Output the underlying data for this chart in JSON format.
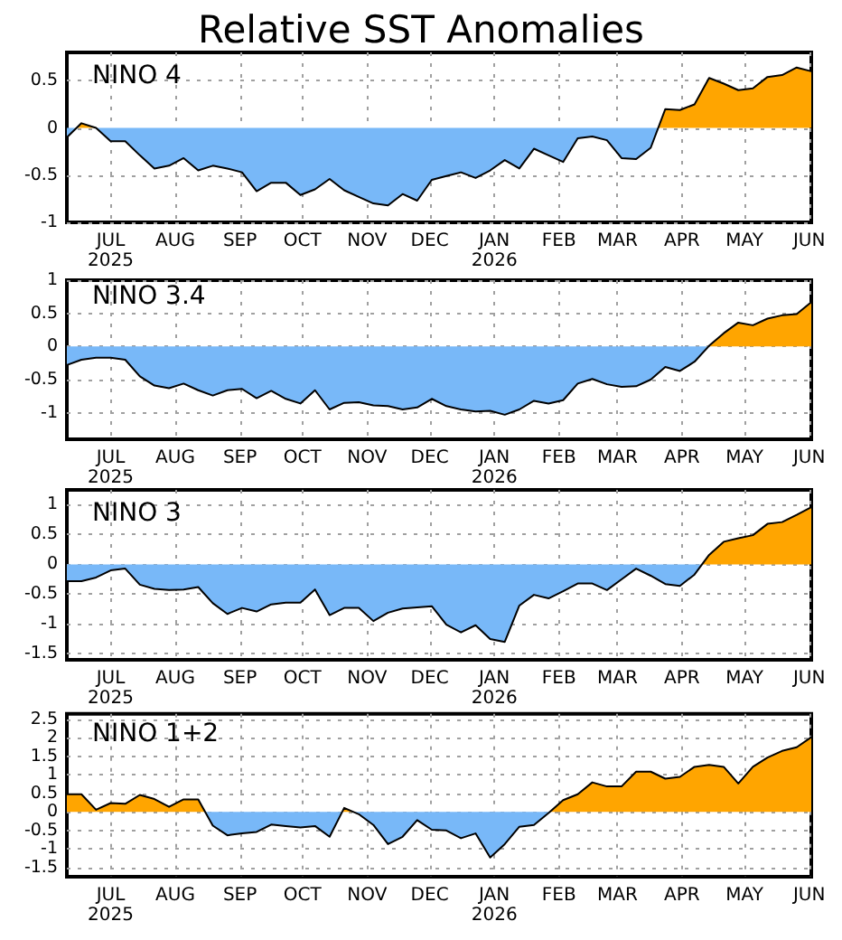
{
  "chart_data": [
    {
      "type": "area",
      "title": "Relative SST Anomalies",
      "subtitle": "NINO 4",
      "grid": true,
      "marker": "none",
      "x": [
        "2025-06-10",
        "2025-06-17",
        "2025-06-24",
        "2025-07-01",
        "2025-07-08",
        "2025-07-15",
        "2025-07-22",
        "2025-07-29",
        "2025-08-05",
        "2025-08-12",
        "2025-08-19",
        "2025-08-26",
        "2025-09-02",
        "2025-09-09",
        "2025-09-16",
        "2025-09-23",
        "2025-09-30",
        "2025-10-07",
        "2025-10-14",
        "2025-10-21",
        "2025-10-28",
        "2025-11-04",
        "2025-11-11",
        "2025-11-18",
        "2025-11-25",
        "2025-12-02",
        "2025-12-09",
        "2025-12-16",
        "2025-12-23",
        "2025-12-30",
        "2026-01-06",
        "2026-01-13",
        "2026-01-20",
        "2026-01-27",
        "2026-02-03",
        "2026-02-10",
        "2026-02-17",
        "2026-02-24",
        "2026-03-03",
        "2026-03-10",
        "2026-03-17",
        "2026-03-24",
        "2026-03-31",
        "2026-04-07",
        "2026-04-14",
        "2026-04-21",
        "2026-04-28",
        "2026-05-05",
        "2026-05-12",
        "2026-05-19",
        "2026-05-26",
        "2026-06-02"
      ],
      "xlim": [
        "2025-06-10",
        "2026-06-02"
      ],
      "xticks": [
        {
          "value": "2025-07-01",
          "label": "JUL\n2025"
        },
        {
          "value": "2025-08-01",
          "label": "AUG"
        },
        {
          "value": "2025-09-01",
          "label": "SEP"
        },
        {
          "value": "2025-10-01",
          "label": "OCT"
        },
        {
          "value": "2025-11-01",
          "label": "NOV"
        },
        {
          "value": "2025-12-01",
          "label": "DEC"
        },
        {
          "value": "2026-01-01",
          "label": "JAN\n2026"
        },
        {
          "value": "2026-02-01",
          "label": "FEB"
        },
        {
          "value": "2026-03-01",
          "label": "MAR"
        },
        {
          "value": "2026-04-01",
          "label": "APR"
        },
        {
          "value": "2026-05-01",
          "label": "MAY"
        },
        {
          "value": "2026-06-01",
          "label": "JUN"
        }
      ],
      "ylim": [
        -1,
        0.8
      ],
      "yticks": [
        -1,
        -0.5,
        0,
        0.5
      ],
      "series": [
        {
          "color": "#000000",
          "values": [
            -0.1,
            0.05,
            0,
            -0.14,
            -0.14,
            -0.29,
            -0.43,
            -0.4,
            -0.32,
            -0.45,
            -0.4,
            -0.43,
            -0.47,
            -0.67,
            -0.58,
            -0.58,
            -0.71,
            -0.65,
            -0.54,
            -0.66,
            -0.73,
            -0.8,
            -0.82,
            -0.7,
            -0.77,
            -0.55,
            -0.51,
            -0.47,
            -0.53,
            -0.45,
            -0.34,
            -0.43,
            -0.22,
            -0.29,
            -0.36,
            -0.11,
            -0.09,
            -0.13,
            -0.32,
            -0.33,
            -0.21,
            0.2,
            0.19,
            0.25,
            0.53,
            0.47,
            0.4,
            0.42,
            0.54,
            0.56,
            0.64,
            0.6
          ],
          "colors": [
            "#78b8f8",
            "#ffa500",
            "#ffa500",
            "#78b8f8",
            "#78b8f8",
            "#78b8f8",
            "#78b8f8",
            "#78b8f8",
            "#78b8f8",
            "#78b8f8",
            "#78b8f8",
            "#78b8f8",
            "#78b8f8",
            "#78b8f8",
            "#78b8f8",
            "#78b8f8",
            "#78b8f8",
            "#78b8f8",
            "#78b8f8",
            "#78b8f8",
            "#78b8f8",
            "#78b8f8",
            "#78b8f8",
            "#78b8f8",
            "#78b8f8",
            "#78b8f8",
            "#78b8f8",
            "#78b8f8",
            "#78b8f8",
            "#78b8f8",
            "#78b8f8",
            "#78b8f8",
            "#78b8f8",
            "#78b8f8",
            "#78b8f8",
            "#78b8f8",
            "#78b8f8",
            "#78b8f8",
            "#78b8f8",
            "#78b8f8",
            "#78b8f8",
            "#ffa500",
            "#ffa500",
            "#ffa500",
            "#ffa500",
            "#ffa500",
            "#ffa500",
            "#ffa500",
            "#ffa500",
            "#ffa500",
            "#ffa500",
            "#ffa500"
          ]
        }
      ]
    },
    {
      "type": "area",
      "subtitle": "NINO 3.4",
      "grid": true,
      "marker": "none",
      "x": [
        "2025-06-10",
        "2025-06-17",
        "2025-06-24",
        "2025-07-01",
        "2025-07-08",
        "2025-07-15",
        "2025-07-22",
        "2025-07-29",
        "2025-08-05",
        "2025-08-12",
        "2025-08-19",
        "2025-08-26",
        "2025-09-02",
        "2025-09-09",
        "2025-09-16",
        "2025-09-23",
        "2025-09-30",
        "2025-10-07",
        "2025-10-14",
        "2025-10-21",
        "2025-10-28",
        "2025-11-04",
        "2025-11-11",
        "2025-11-18",
        "2025-11-25",
        "2025-12-02",
        "2025-12-09",
        "2025-12-16",
        "2025-12-23",
        "2025-12-30",
        "2026-01-06",
        "2026-01-13",
        "2026-01-20",
        "2026-01-27",
        "2026-02-03",
        "2026-02-10",
        "2026-02-17",
        "2026-02-24",
        "2026-03-03",
        "2026-03-10",
        "2026-03-17",
        "2026-03-24",
        "2026-03-31",
        "2026-04-07",
        "2026-04-14",
        "2026-04-21",
        "2026-04-28",
        "2026-05-05",
        "2026-05-12",
        "2026-05-19",
        "2026-05-26",
        "2026-06-02"
      ],
      "xlim": [
        "2025-06-10",
        "2026-06-02"
      ],
      "xticks": [
        {
          "value": "2025-07-01",
          "label": "JUL\n2025"
        },
        {
          "value": "2025-08-01",
          "label": "AUG"
        },
        {
          "value": "2025-09-01",
          "label": "SEP"
        },
        {
          "value": "2025-10-01",
          "label": "OCT"
        },
        {
          "value": "2025-11-01",
          "label": "NOV"
        },
        {
          "value": "2025-12-01",
          "label": "DEC"
        },
        {
          "value": "2026-01-01",
          "label": "JAN\n2026"
        },
        {
          "value": "2026-02-01",
          "label": "FEB"
        },
        {
          "value": "2026-03-01",
          "label": "MAR"
        },
        {
          "value": "2026-04-01",
          "label": "APR"
        },
        {
          "value": "2026-05-01",
          "label": "MAY"
        },
        {
          "value": "2026-06-01",
          "label": "JUN"
        }
      ],
      "ylim": [
        -1.4,
        1
      ],
      "yticks": [
        -1,
        -0.5,
        0,
        0.5,
        1
      ],
      "series": [
        {
          "color": "#000000",
          "values": [
            -0.28,
            -0.2,
            -0.17,
            -0.17,
            -0.2,
            -0.45,
            -0.59,
            -0.63,
            -0.56,
            -0.66,
            -0.74,
            -0.66,
            -0.64,
            -0.78,
            -0.67,
            -0.79,
            -0.86,
            -0.66,
            -0.95,
            -0.85,
            -0.84,
            -0.89,
            -0.9,
            -0.95,
            -0.92,
            -0.79,
            -0.9,
            -0.95,
            -0.98,
            -0.97,
            -1.03,
            -0.95,
            -0.82,
            -0.86,
            -0.81,
            -0.56,
            -0.49,
            -0.57,
            -0.61,
            -0.6,
            -0.5,
            -0.31,
            -0.37,
            -0.23,
            0.01,
            0.2,
            0.36,
            0.32,
            0.42,
            0.47,
            0.49,
            0.67
          ],
          "colors": [
            "#78b8f8",
            "#78b8f8",
            "#78b8f8",
            "#78b8f8",
            "#78b8f8",
            "#78b8f8",
            "#78b8f8",
            "#78b8f8",
            "#78b8f8",
            "#78b8f8",
            "#78b8f8",
            "#78b8f8",
            "#78b8f8",
            "#78b8f8",
            "#78b8f8",
            "#78b8f8",
            "#78b8f8",
            "#78b8f8",
            "#78b8f8",
            "#78b8f8",
            "#78b8f8",
            "#78b8f8",
            "#78b8f8",
            "#78b8f8",
            "#78b8f8",
            "#78b8f8",
            "#78b8f8",
            "#78b8f8",
            "#78b8f8",
            "#78b8f8",
            "#78b8f8",
            "#78b8f8",
            "#78b8f8",
            "#78b8f8",
            "#78b8f8",
            "#78b8f8",
            "#78b8f8",
            "#78b8f8",
            "#78b8f8",
            "#78b8f8",
            "#78b8f8",
            "#78b8f8",
            "#78b8f8",
            "#78b8f8",
            "#ffa500",
            "#ffa500",
            "#ffa500",
            "#ffa500",
            "#ffa500",
            "#ffa500",
            "#ffa500",
            "#ffa500"
          ]
        }
      ]
    },
    {
      "type": "area",
      "subtitle": "NINO 3",
      "grid": true,
      "marker": "none",
      "x": [
        "2025-06-10",
        "2025-06-17",
        "2025-06-24",
        "2025-07-01",
        "2025-07-08",
        "2025-07-15",
        "2025-07-22",
        "2025-07-29",
        "2025-08-05",
        "2025-08-12",
        "2025-08-19",
        "2025-08-26",
        "2025-09-02",
        "2025-09-09",
        "2025-09-16",
        "2025-09-23",
        "2025-09-30",
        "2025-10-07",
        "2025-10-14",
        "2025-10-21",
        "2025-10-28",
        "2025-11-04",
        "2025-11-11",
        "2025-11-18",
        "2025-11-25",
        "2025-12-02",
        "2025-12-09",
        "2025-12-16",
        "2025-12-23",
        "2025-12-30",
        "2026-01-06",
        "2026-01-13",
        "2026-01-20",
        "2026-01-27",
        "2026-02-03",
        "2026-02-10",
        "2026-02-17",
        "2026-02-24",
        "2026-03-03",
        "2026-03-10",
        "2026-03-17",
        "2026-03-24",
        "2026-03-31",
        "2026-04-07",
        "2026-04-14",
        "2026-04-21",
        "2026-04-28",
        "2026-05-05",
        "2026-05-12",
        "2026-05-19",
        "2026-05-26",
        "2026-06-02"
      ],
      "xlim": [
        "2025-06-10",
        "2026-06-02"
      ],
      "xticks": [
        {
          "value": "2025-07-01",
          "label": "JUL\n2025"
        },
        {
          "value": "2025-08-01",
          "label": "AUG"
        },
        {
          "value": "2025-09-01",
          "label": "SEP"
        },
        {
          "value": "2025-10-01",
          "label": "OCT"
        },
        {
          "value": "2025-11-01",
          "label": "NOV"
        },
        {
          "value": "2025-12-01",
          "label": "DEC"
        },
        {
          "value": "2026-01-01",
          "label": "JAN\n2026"
        },
        {
          "value": "2026-02-01",
          "label": "FEB"
        },
        {
          "value": "2026-03-01",
          "label": "MAR"
        },
        {
          "value": "2026-04-01",
          "label": "APR"
        },
        {
          "value": "2026-05-01",
          "label": "MAY"
        },
        {
          "value": "2026-06-01",
          "label": "JUN"
        }
      ],
      "ylim": [
        -1.6,
        1.25
      ],
      "yticks": [
        -1.5,
        -1,
        -0.5,
        0,
        0.5,
        1
      ],
      "series": [
        {
          "color": "#000000",
          "values": [
            -0.28,
            -0.28,
            -0.22,
            -0.1,
            -0.07,
            -0.34,
            -0.41,
            -0.43,
            -0.42,
            -0.38,
            -0.65,
            -0.83,
            -0.73,
            -0.79,
            -0.67,
            -0.64,
            -0.64,
            -0.42,
            -0.85,
            -0.73,
            -0.73,
            -0.95,
            -0.81,
            -0.74,
            -0.72,
            -0.7,
            -1.01,
            -1.14,
            -1.02,
            -1.25,
            -1.3,
            -0.69,
            -0.51,
            -0.57,
            -0.45,
            -0.32,
            -0.32,
            -0.43,
            -0.25,
            -0.07,
            -0.19,
            -0.33,
            -0.36,
            -0.17,
            0.16,
            0.38,
            0.44,
            0.49,
            0.68,
            0.71,
            0.83,
            0.96
          ],
          "colors": [
            "#78b8f8",
            "#78b8f8",
            "#78b8f8",
            "#78b8f8",
            "#78b8f8",
            "#78b8f8",
            "#78b8f8",
            "#78b8f8",
            "#78b8f8",
            "#78b8f8",
            "#78b8f8",
            "#78b8f8",
            "#78b8f8",
            "#78b8f8",
            "#78b8f8",
            "#78b8f8",
            "#78b8f8",
            "#78b8f8",
            "#78b8f8",
            "#78b8f8",
            "#78b8f8",
            "#78b8f8",
            "#78b8f8",
            "#78b8f8",
            "#78b8f8",
            "#78b8f8",
            "#78b8f8",
            "#78b8f8",
            "#78b8f8",
            "#78b8f8",
            "#78b8f8",
            "#78b8f8",
            "#78b8f8",
            "#78b8f8",
            "#78b8f8",
            "#78b8f8",
            "#78b8f8",
            "#78b8f8",
            "#78b8f8",
            "#78b8f8",
            "#78b8f8",
            "#78b8f8",
            "#78b8f8",
            "#78b8f8",
            "#ffa500",
            "#ffa500",
            "#ffa500",
            "#ffa500",
            "#ffa500",
            "#ffa500",
            "#ffa500",
            "#ffa500"
          ]
        }
      ]
    },
    {
      "type": "area",
      "subtitle": "NINO 1+2",
      "grid": true,
      "marker": "none",
      "x": [
        "2025-06-10",
        "2025-06-17",
        "2025-06-24",
        "2025-07-01",
        "2025-07-08",
        "2025-07-15",
        "2025-07-22",
        "2025-07-29",
        "2025-08-05",
        "2025-08-12",
        "2025-08-19",
        "2025-08-26",
        "2025-09-02",
        "2025-09-09",
        "2025-09-16",
        "2025-09-23",
        "2025-09-30",
        "2025-10-07",
        "2025-10-14",
        "2025-10-21",
        "2025-10-28",
        "2025-11-04",
        "2025-11-11",
        "2025-11-18",
        "2025-11-25",
        "2025-12-02",
        "2025-12-09",
        "2025-12-16",
        "2025-12-23",
        "2025-12-30",
        "2026-01-06",
        "2026-01-13",
        "2026-01-20",
        "2026-01-27",
        "2026-02-03",
        "2026-02-10",
        "2026-02-17",
        "2026-02-24",
        "2026-03-03",
        "2026-03-10",
        "2026-03-17",
        "2026-03-24",
        "2026-03-31",
        "2026-04-07",
        "2026-04-14",
        "2026-04-21",
        "2026-04-28",
        "2026-05-05",
        "2026-05-12",
        "2026-05-19",
        "2026-05-26",
        "2026-06-02"
      ],
      "xlim": [
        "2025-06-10",
        "2026-06-02"
      ],
      "xticks": [
        {
          "value": "2025-07-01",
          "label": "JUL\n2025"
        },
        {
          "value": "2025-08-01",
          "label": "AUG"
        },
        {
          "value": "2025-09-01",
          "label": "SEP"
        },
        {
          "value": "2025-10-01",
          "label": "OCT"
        },
        {
          "value": "2025-11-01",
          "label": "NOV"
        },
        {
          "value": "2025-12-01",
          "label": "DEC"
        },
        {
          "value": "2026-01-01",
          "label": "JAN\n2026"
        },
        {
          "value": "2026-02-01",
          "label": "FEB"
        },
        {
          "value": "2026-03-01",
          "label": "MAR"
        },
        {
          "value": "2026-04-01",
          "label": "APR"
        },
        {
          "value": "2026-05-01",
          "label": "MAY"
        },
        {
          "value": "2026-06-01",
          "label": "JUN"
        }
      ],
      "ylim": [
        -1.75,
        2.65
      ],
      "yticks": [
        -1.5,
        -1,
        -0.5,
        0,
        0.5,
        1,
        1.5,
        2,
        2.5
      ],
      "series": [
        {
          "color": "#000000",
          "values": [
            0.48,
            0.48,
            0.06,
            0.24,
            0.22,
            0.46,
            0.35,
            0.14,
            0.34,
            0.34,
            -0.37,
            -0.63,
            -0.58,
            -0.54,
            -0.34,
            -0.38,
            -0.42,
            -0.38,
            -0.67,
            0.11,
            -0.06,
            -0.35,
            -0.87,
            -0.67,
            -0.22,
            -0.48,
            -0.5,
            -0.71,
            -0.58,
            -1.23,
            -0.87,
            -0.4,
            -0.35,
            -0.03,
            0.32,
            0.48,
            0.8,
            0.69,
            0.69,
            1.09,
            1.09,
            0.9,
            0.95,
            1.22,
            1.27,
            1.22,
            0.77,
            1.22,
            1.47,
            1.65,
            1.75,
            2.02
          ],
          "colors": [
            "#ffa500",
            "#ffa500",
            "#ffa500",
            "#ffa500",
            "#ffa500",
            "#ffa500",
            "#ffa500",
            "#ffa500",
            "#ffa500",
            "#ffa500",
            "#78b8f8",
            "#78b8f8",
            "#78b8f8",
            "#78b8f8",
            "#78b8f8",
            "#78b8f8",
            "#78b8f8",
            "#78b8f8",
            "#78b8f8",
            "#ffa500",
            "#78b8f8",
            "#78b8f8",
            "#78b8f8",
            "#78b8f8",
            "#78b8f8",
            "#78b8f8",
            "#78b8f8",
            "#78b8f8",
            "#78b8f8",
            "#78b8f8",
            "#78b8f8",
            "#78b8f8",
            "#78b8f8",
            "#78b8f8",
            "#ffa500",
            "#ffa500",
            "#ffa500",
            "#ffa500",
            "#ffa500",
            "#ffa500",
            "#ffa500",
            "#ffa500",
            "#ffa500",
            "#ffa500",
            "#ffa500",
            "#ffa500",
            "#ffa500",
            "#ffa500",
            "#ffa500",
            "#ffa500",
            "#ffa500",
            "#ffa500"
          ]
        }
      ]
    }
  ]
}
